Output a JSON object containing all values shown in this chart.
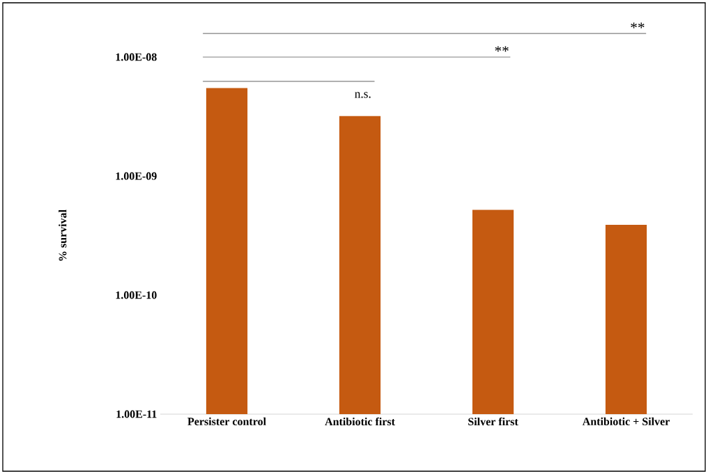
{
  "chart_data": {
    "type": "bar",
    "ylabel": "% survival",
    "categories": [
      "Persister control",
      "Antibiotic first",
      "Silver first",
      "Antibiotic  + Silver"
    ],
    "values": [
      5.5e-09,
      3.2e-09,
      5.2e-10,
      3.9e-10
    ],
    "color": "#c55a11",
    "log": true,
    "ylim": [
      1e-11,
      1e-08
    ],
    "yticks": [
      {
        "value": 1e-11,
        "label": "1.00E-11"
      },
      {
        "value": 1e-10,
        "label": "1.00E-10"
      },
      {
        "value": 1e-09,
        "label": "1.00E-09"
      },
      {
        "value": 1e-08,
        "label": "1.00E-08"
      }
    ],
    "annotations": [
      "n.s.",
      "**",
      "**"
    ]
  }
}
